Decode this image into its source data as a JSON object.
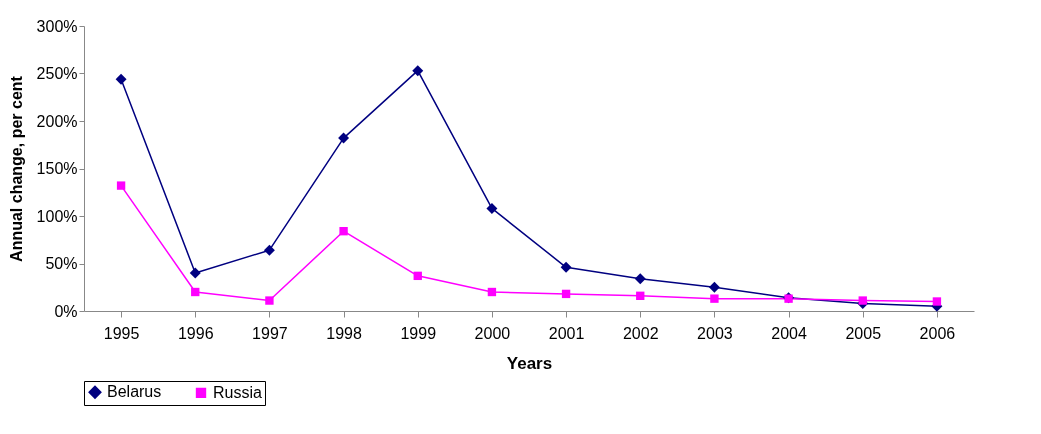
{
  "chart_data": {
    "type": "line",
    "xlabel": "Years",
    "ylabel": "Annual change, per cent",
    "categories": [
      "1995",
      "1996",
      "1997",
      "1998",
      "1999",
      "2000",
      "2001",
      "2002",
      "2003",
      "2004",
      "2005",
      "2006"
    ],
    "series": [
      {
        "name": "Belarus",
        "color": "#000080",
        "marker": "diamond",
        "values": [
          244,
          40,
          64,
          182,
          253,
          108,
          46,
          34,
          25,
          14,
          8,
          5
        ]
      },
      {
        "name": "Russia",
        "color": "#ff00ff",
        "marker": "square",
        "values": [
          132,
          20,
          11,
          84,
          37,
          20,
          18,
          16,
          13,
          13,
          11,
          10
        ]
      }
    ],
    "ylim": [
      0,
      300
    ],
    "yticks": [
      {
        "value": 0,
        "label": "0%"
      },
      {
        "value": 50,
        "label": "50%"
      },
      {
        "value": 100,
        "label": "100%"
      },
      {
        "value": 150,
        "label": "150%"
      },
      {
        "value": 200,
        "label": "200%"
      },
      {
        "value": 250,
        "label": "250%"
      },
      {
        "value": 300,
        "label": "300%"
      }
    ],
    "grid": false,
    "legend": "bottom left"
  }
}
